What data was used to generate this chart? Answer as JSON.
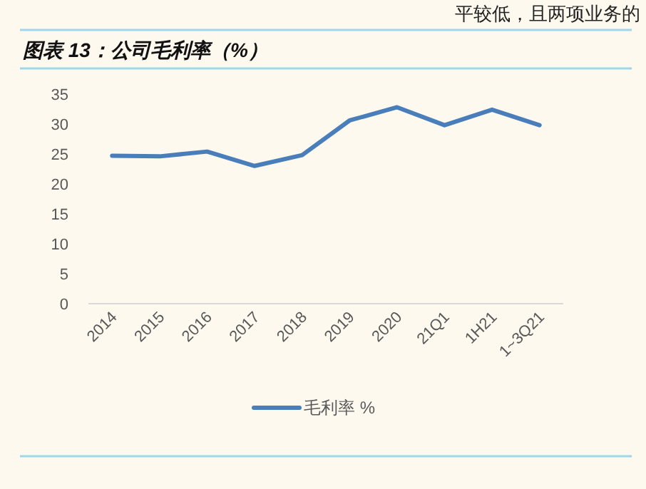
{
  "chart_data": {
    "type": "line",
    "title": "图表 13：公司毛利率（%）",
    "annotations": [
      "平较低，且两项业务的"
    ],
    "categories": [
      "2014",
      "2015",
      "2016",
      "2017",
      "2018",
      "2019",
      "2020",
      "21Q1",
      "1H21",
      "1~3Q21"
    ],
    "series": [
      {
        "name": "毛利率 %",
        "color": "#4a7ebb",
        "values": [
          24.7,
          24.6,
          25.4,
          23.0,
          24.8,
          30.6,
          32.8,
          29.8,
          32.4,
          29.8
        ]
      }
    ],
    "ylim": [
      0,
      35
    ],
    "yticks": [
      0,
      5,
      10,
      15,
      20,
      25,
      30,
      35
    ],
    "legend": "bottom"
  }
}
